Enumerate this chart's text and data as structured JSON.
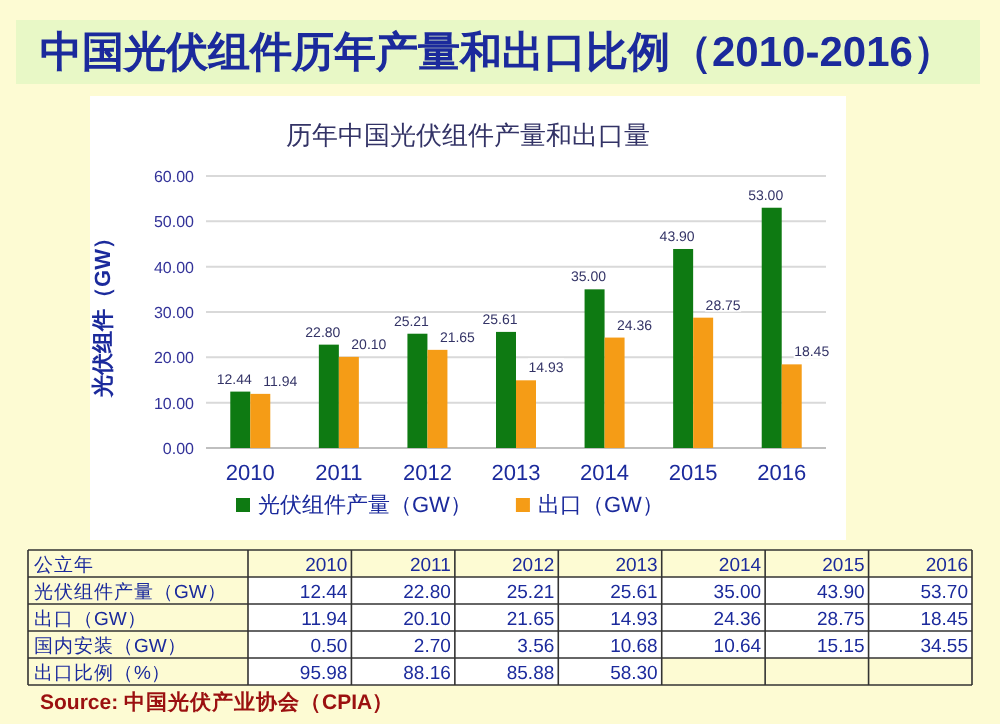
{
  "chart_data": [
    {
      "type": "bar",
      "title": "中国光伏组件历年产量和出口比例（2010-2016）",
      "subtitle": "历年中国光伏组件产量和出口量",
      "ylabel": "光伏组件（GW）",
      "categories": [
        "2010",
        "2011",
        "2012",
        "2013",
        "2014",
        "2015",
        "2016"
      ],
      "series": [
        {
          "name": "光伏组件产量（GW）",
          "color": "#0e7a12",
          "values": [
            12.44,
            22.8,
            25.21,
            25.61,
            35.0,
            43.9,
            53.0
          ],
          "value_labels": [
            "12.44",
            "22.80",
            "25.21",
            "25.61",
            "35.00",
            "43.90",
            "53.00"
          ]
        },
        {
          "name": "出口（GW）",
          "color": "#f59c16",
          "values": [
            11.94,
            20.1,
            21.65,
            14.93,
            24.36,
            28.75,
            18.45
          ],
          "value_labels": [
            "11.94",
            "20.10",
            "21.65",
            "14.93",
            "24.36",
            "28.75",
            "18.45"
          ]
        }
      ],
      "ylim": [
        0,
        60
      ],
      "yticks": [
        {
          "value": 0,
          "label": "0.00"
        },
        {
          "value": 10,
          "label": "10.00"
        },
        {
          "value": 20,
          "label": "20.00"
        },
        {
          "value": 30,
          "label": "30.00"
        },
        {
          "value": 40,
          "label": "40.00"
        },
        {
          "value": 50,
          "label": "50.00"
        },
        {
          "value": 60,
          "label": "60.00"
        }
      ],
      "grid": "y",
      "legend": "bottom"
    },
    {
      "type": "heatmap",
      "data_labels": true,
      "xlabel": "公立年",
      "categories": [
        "2010",
        "2011",
        "2012",
        "2013",
        "2014",
        "2015",
        "2016"
      ],
      "y_categories": [
        "光伏组件产量（GW）",
        "出口（GW）",
        "国内安装（GW）",
        "出口比例（%）"
      ],
      "cells": [
        [
          12.44,
          22.8,
          25.21,
          25.61,
          35.0,
          43.9,
          53.7
        ],
        [
          11.94,
          20.1,
          21.65,
          14.93,
          24.36,
          28.75,
          18.45
        ],
        [
          0.5,
          2.7,
          3.56,
          10.68,
          10.64,
          15.15,
          34.55
        ],
        [
          95.98,
          88.16,
          85.88,
          58.3,
          null,
          null,
          null
        ]
      ],
      "cell_labels": [
        [
          "12.44",
          "22.80",
          "25.21",
          "25.61",
          "35.00",
          "43.90",
          "53.70"
        ],
        [
          "11.94",
          "20.10",
          "21.65",
          "14.93",
          "24.36",
          "28.75",
          "18.45"
        ],
        [
          "0.50",
          "2.70",
          "3.56",
          "10.68",
          "10.64",
          "15.15",
          "34.55"
        ],
        [
          "95.98",
          "88.16",
          "85.88",
          "58.30",
          null,
          null,
          null
        ]
      ],
      "annotations": [
        "Source: 中国光伏产业协会（CPIA）"
      ]
    }
  ]
}
